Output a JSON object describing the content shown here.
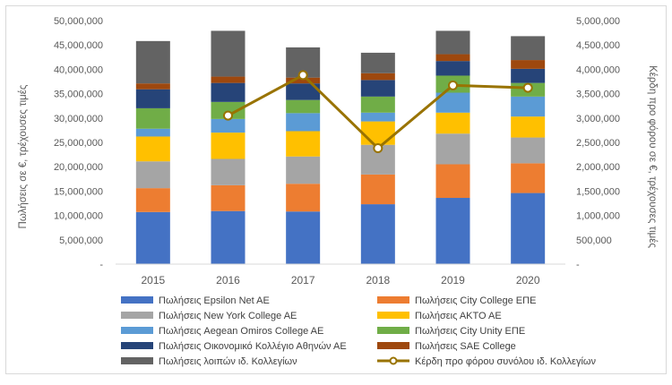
{
  "chart_data": {
    "type": "bar",
    "stacked": true,
    "categories": [
      "2015",
      "2016",
      "2017",
      "2018",
      "2019",
      "2020"
    ],
    "ylabel": "Πωλήσεις σε €, τρέχουσες τιμές",
    "y2label": "Κέρδη προ φόρου σε €, τρέχουσες τιμές",
    "ylim": [
      0,
      50000000
    ],
    "y2lim": [
      0,
      5000000
    ],
    "yticks": [
      "-",
      "5,000,000",
      "10,000,000",
      "15,000,000",
      "20,000,000",
      "25,000,000",
      "30,000,000",
      "35,000,000",
      "40,000,000",
      "45,000,000",
      "50,000,000"
    ],
    "y2ticks": [
      "-",
      "500,000",
      "1,000,000",
      "1,500,000",
      "2,000,000",
      "2,500,000",
      "3,000,000",
      "3,500,000",
      "4,000,000",
      "4,500,000",
      "5,000,000"
    ],
    "grid": false,
    "legend_position": "bottom",
    "series": [
      {
        "name": "Πωλήσεις Epsilon Net AE",
        "color": "#4472c4",
        "values": [
          10700000,
          10900000,
          10800000,
          12300000,
          13600000,
          14600000
        ]
      },
      {
        "name": "Πωλήσεις City College ΕΠΕ",
        "color": "#ed7d31",
        "values": [
          4900000,
          5300000,
          5700000,
          6100000,
          6900000,
          6100000
        ]
      },
      {
        "name": "Πωλήσεις New York College AE",
        "color": "#a5a5a5",
        "values": [
          5500000,
          5400000,
          5600000,
          6100000,
          6300000,
          5300000
        ]
      },
      {
        "name": "Πωλήσεις ΑΚΤΟ ΑΕ",
        "color": "#ffc000",
        "values": [
          5100000,
          5400000,
          5200000,
          4800000,
          4300000,
          4300000
        ]
      },
      {
        "name": "Πωλήσεις Aegean Omiros College AE",
        "color": "#5b9bd5",
        "values": [
          1600000,
          2800000,
          3700000,
          1800000,
          4100000,
          4100000
        ]
      },
      {
        "name": "Πωλήσεις City Unity ΕΠΕ",
        "color": "#70ad47",
        "values": [
          4200000,
          3500000,
          2700000,
          3300000,
          3500000,
          2800000
        ]
      },
      {
        "name": "Πωλήσεις Οικονομικό Κολλέγιο Αθηνών ΑΕ",
        "color": "#264478",
        "values": [
          3900000,
          3900000,
          3400000,
          3400000,
          3000000,
          2900000
        ]
      },
      {
        "name": "Πωλήσεις SAE College",
        "color": "#9e480e",
        "values": [
          1200000,
          1300000,
          1200000,
          1400000,
          1400000,
          1800000
        ]
      },
      {
        "name": "Πωλήσεις λοιπών ιδ. Κολλεγίων",
        "color": "#636363",
        "values": [
          8700000,
          9400000,
          6200000,
          4200000,
          4800000,
          4900000
        ]
      }
    ],
    "line_series": {
      "name": "Κέρδη προ φόρου συνόλου ιδ. Κολλεγίων",
      "color": "#997300",
      "axis": "right",
      "values": [
        null,
        3050000,
        3880000,
        2380000,
        3670000,
        3620000
      ]
    }
  }
}
